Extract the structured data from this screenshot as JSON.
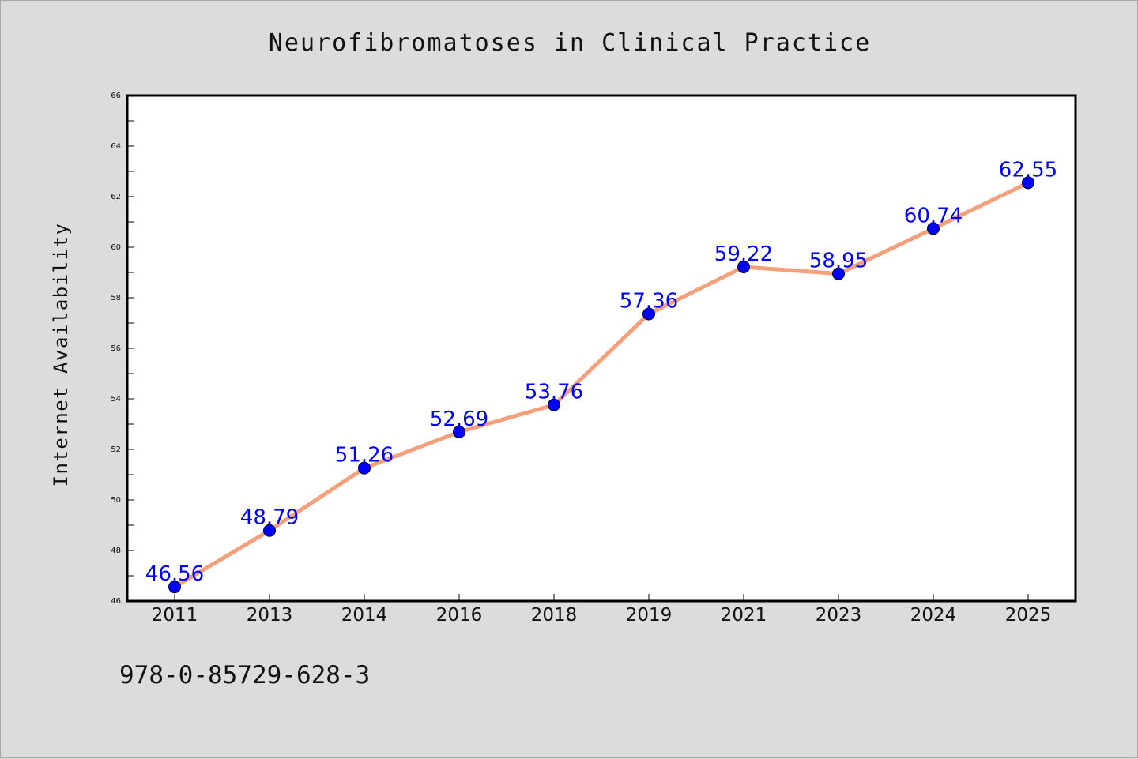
{
  "chart_data": {
    "type": "line",
    "title": "Neurofibromatoses in Clinical Practice",
    "xlabel": "",
    "ylabel": "Internet Availability",
    "categories": [
      "2011",
      "2013",
      "2014",
      "2016",
      "2018",
      "2019",
      "2021",
      "2023",
      "2024",
      "2025"
    ],
    "series": [
      {
        "values": [
          46.56,
          48.79,
          51.26,
          52.69,
          53.76,
          57.36,
          59.22,
          58.95,
          60.74,
          62.55
        ],
        "labels": [
          "46.56",
          "48.79",
          "51.26",
          "52.69",
          "53.76",
          "57.36",
          "59.22",
          "58.95",
          "60.74",
          "62.55"
        ]
      }
    ],
    "ylim": [
      46,
      66
    ],
    "y_ticks": [
      "46",
      "48",
      "50",
      "52",
      "54",
      "56",
      "58",
      "60",
      "62",
      "64",
      "66"
    ],
    "grid": false,
    "line_color": "#f4a07a",
    "marker_color": "#0000ff",
    "label_color": "#0000ff"
  },
  "footer": {
    "isbn": "978-0-85729-628-3"
  }
}
